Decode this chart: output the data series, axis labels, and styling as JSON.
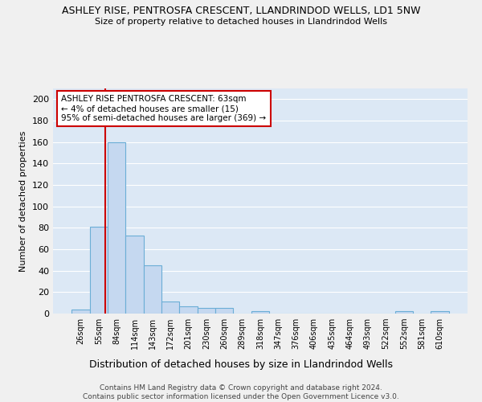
{
  "title": "ASHLEY RISE, PENTROSFA CRESCENT, LLANDRINDOD WELLS, LD1 5NW",
  "subtitle": "Size of property relative to detached houses in Llandrindod Wells",
  "xlabel": "Distribution of detached houses by size in Llandrindod Wells",
  "ylabel": "Number of detached properties",
  "footer_line1": "Contains HM Land Registry data © Crown copyright and database right 2024.",
  "footer_line2": "Contains public sector information licensed under the Open Government Licence v3.0.",
  "bar_labels": [
    "26sqm",
    "55sqm",
    "84sqm",
    "114sqm",
    "143sqm",
    "172sqm",
    "201sqm",
    "230sqm",
    "260sqm",
    "289sqm",
    "318sqm",
    "347sqm",
    "376sqm",
    "406sqm",
    "435sqm",
    "464sqm",
    "493sqm",
    "522sqm",
    "552sqm",
    "581sqm",
    "610sqm"
  ],
  "bar_values": [
    4,
    81,
    160,
    73,
    45,
    11,
    7,
    5,
    5,
    0,
    2,
    0,
    0,
    0,
    0,
    0,
    0,
    0,
    2,
    0,
    2
  ],
  "bar_color": "#c5d8f0",
  "bar_edge_color": "#6baed6",
  "fig_bg_color": "#f0f0f0",
  "plot_bg_color": "#dce8f5",
  "grid_color": "#ffffff",
  "annotation_box_text": "ASHLEY RISE PENTROSFA CRESCENT: 63sqm\n← 4% of detached houses are smaller (15)\n95% of semi-detached houses are larger (369) →",
  "annotation_box_color": "#ffffff",
  "annotation_box_edge_color": "#cc0000",
  "property_line_x": 1.37,
  "property_line_color": "#cc0000",
  "ylim": [
    0,
    210
  ],
  "yticks": [
    0,
    20,
    40,
    60,
    80,
    100,
    120,
    140,
    160,
    180,
    200
  ]
}
